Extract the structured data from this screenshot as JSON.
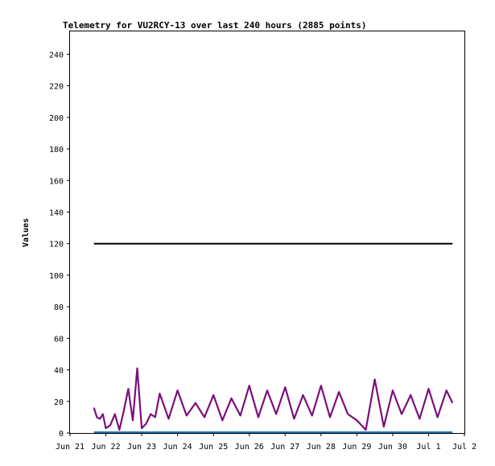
{
  "chart_data": {
    "type": "line",
    "title": "Telemetry for VU2RCY-13 over last 240 hours (2885 points)",
    "xlabel": "",
    "ylabel": "Values",
    "x_range": [
      "2021-06-21",
      "2021-07-02"
    ],
    "ylim": [
      0,
      255
    ],
    "y_ticks": [
      0,
      20,
      40,
      60,
      80,
      100,
      120,
      140,
      160,
      180,
      200,
      220,
      240
    ],
    "x_ticks": [
      {
        "date": "2021-06-21",
        "label": "Jun 21"
      },
      {
        "date": "2021-06-22",
        "label": "Jun 22"
      },
      {
        "date": "2021-06-23",
        "label": "Jun 23"
      },
      {
        "date": "2021-06-24",
        "label": "Jun 24"
      },
      {
        "date": "2021-06-25",
        "label": "Jun 25"
      },
      {
        "date": "2021-06-26",
        "label": "Jun 26"
      },
      {
        "date": "2021-06-27",
        "label": "Jun 27"
      },
      {
        "date": "2021-06-28",
        "label": "Jun 28"
      },
      {
        "date": "2021-06-29",
        "label": "Jun 29"
      },
      {
        "date": "2021-06-30",
        "label": "Jun 30"
      },
      {
        "date": "2021-07-01",
        "label": "Jul 1"
      },
      {
        "date": "2021-07-02",
        "label": "Jul 2"
      }
    ],
    "grid": false,
    "legend": "none",
    "series": [
      {
        "color": "#000000",
        "x": [
          "2021-06-21T16:00",
          "2021-07-01T16:00"
        ],
        "values": [
          120,
          120
        ]
      },
      {
        "color": "#7b0f7b",
        "x": [
          "2021-06-21T16:00",
          "2021-06-21T18:00",
          "2021-06-21T20:00",
          "2021-06-21T22:00",
          "2021-06-22T00:00",
          "2021-06-22T03:00",
          "2021-06-22T06:00",
          "2021-06-22T09:00",
          "2021-06-22T12:00",
          "2021-06-22T15:00",
          "2021-06-22T18:00",
          "2021-06-22T21:00",
          "2021-06-23T00:00",
          "2021-06-23T03:00",
          "2021-06-23T06:00",
          "2021-06-23T09:00",
          "2021-06-23T12:00",
          "2021-06-23T18:00",
          "2021-06-24T00:00",
          "2021-06-24T06:00",
          "2021-06-24T12:00",
          "2021-06-24T18:00",
          "2021-06-25T00:00",
          "2021-06-25T06:00",
          "2021-06-25T12:00",
          "2021-06-25T18:00",
          "2021-06-26T00:00",
          "2021-06-26T06:00",
          "2021-06-26T12:00",
          "2021-06-26T18:00",
          "2021-06-27T00:00",
          "2021-06-27T06:00",
          "2021-06-27T12:00",
          "2021-06-27T18:00",
          "2021-06-28T00:00",
          "2021-06-28T06:00",
          "2021-06-28T12:00",
          "2021-06-28T18:00",
          "2021-06-29T00:00",
          "2021-06-29T06:00",
          "2021-06-29T12:00",
          "2021-06-29T18:00",
          "2021-06-30T00:00",
          "2021-06-30T06:00",
          "2021-06-30T12:00",
          "2021-06-30T18:00",
          "2021-07-01T00:00",
          "2021-07-01T06:00",
          "2021-07-01T12:00",
          "2021-07-01T16:00"
        ],
        "values": [
          16,
          10,
          9,
          12,
          3,
          5,
          12,
          2,
          14,
          28,
          8,
          41,
          3,
          6,
          12,
          10,
          25,
          9,
          27,
          11,
          19,
          10,
          24,
          8,
          22,
          11,
          30,
          10,
          27,
          12,
          29,
          9,
          24,
          11,
          30,
          10,
          26,
          12,
          8,
          2,
          34,
          4,
          27,
          12,
          24,
          9,
          28,
          10,
          27,
          19
        ]
      },
      {
        "color": "#1f77b4",
        "x": [
          "2021-06-21T16:00",
          "2021-07-01T16:00"
        ],
        "values": [
          0.5,
          0.5
        ]
      }
    ]
  }
}
